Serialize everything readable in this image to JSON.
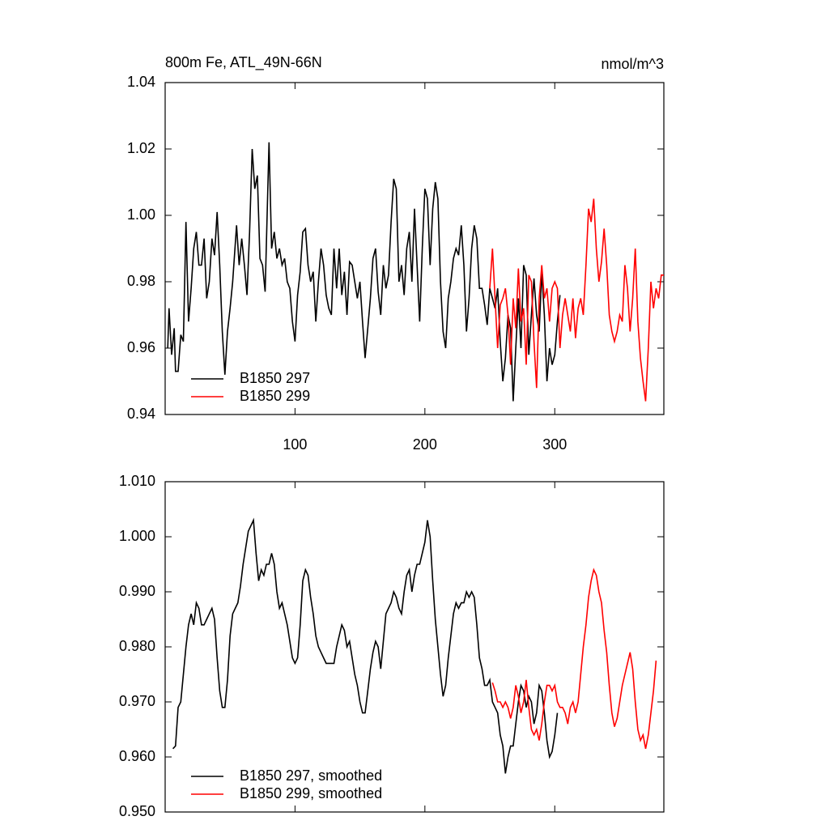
{
  "chart_data": [
    {
      "type": "line",
      "title": "800m Fe, ATL_49N-66N",
      "units": "nmol/m^3",
      "xlim": [
        0,
        384
      ],
      "xticks": [
        100,
        200,
        300
      ],
      "xtick_labels": true,
      "ylim": [
        0.94,
        1.04
      ],
      "yticks": [
        0.94,
        0.96,
        0.98,
        {
          "value": 1,
          "label": "1.00"
        },
        1.02,
        1.04
      ],
      "legend": "lower left",
      "series": [
        {
          "name": "B1850 297",
          "color": "#000000",
          "x": [
            2,
            3,
            5,
            7,
            8,
            10,
            12,
            14,
            16,
            18,
            20,
            22,
            24,
            26,
            28,
            30,
            32,
            34,
            36,
            38,
            40,
            42,
            44,
            46,
            48,
            50,
            52,
            55,
            57,
            59,
            61,
            63,
            65,
            67,
            69,
            71,
            73,
            75,
            77,
            80,
            82,
            84,
            86,
            88,
            90,
            92,
            94,
            96,
            98,
            100,
            102,
            104,
            106,
            108,
            110,
            112,
            114,
            116,
            118,
            120,
            122,
            124,
            126,
            128,
            130,
            132,
            134,
            136,
            138,
            140,
            142,
            144,
            146,
            148,
            150,
            152,
            154,
            156,
            158,
            160,
            162,
            164,
            166,
            168,
            170,
            172,
            174,
            176,
            178,
            180,
            182,
            184,
            186,
            188,
            190,
            192,
            194,
            196,
            198,
            200,
            202,
            204,
            206,
            208,
            210,
            212,
            214,
            216,
            218,
            220,
            222,
            224,
            226,
            228,
            230,
            232,
            234,
            236,
            238,
            240,
            242,
            244,
            246,
            248,
            250,
            252,
            254,
            256,
            258,
            260,
            262,
            264,
            266,
            268,
            270,
            272,
            274,
            276,
            278,
            280,
            282,
            284,
            286,
            288,
            290,
            292,
            294,
            296,
            298,
            300,
            302,
            304
          ],
          "values": [
            0.96,
            0.972,
            0.958,
            0.966,
            0.953,
            0.953,
            0.964,
            0.962,
            0.998,
            0.968,
            0.978,
            0.99,
            0.995,
            0.985,
            0.985,
            0.993,
            0.975,
            0.98,
            0.993,
            0.988,
            1.001,
            0.985,
            0.965,
            0.952,
            0.965,
            0.972,
            0.98,
            0.997,
            0.985,
            0.993,
            0.985,
            0.976,
            0.995,
            1.02,
            1.008,
            1.012,
            0.987,
            0.985,
            0.977,
            1.022,
            0.99,
            0.995,
            0.987,
            0.99,
            0.985,
            0.987,
            0.98,
            0.978,
            0.968,
            0.962,
            0.976,
            0.983,
            0.995,
            0.996,
            0.985,
            0.98,
            0.983,
            0.968,
            0.98,
            0.99,
            0.985,
            0.976,
            0.972,
            0.97,
            0.99,
            0.978,
            0.99,
            0.976,
            0.983,
            0.97,
            0.986,
            0.985,
            0.98,
            0.975,
            0.98,
            0.968,
            0.957,
            0.966,
            0.975,
            0.987,
            0.99,
            0.977,
            0.97,
            0.985,
            0.978,
            0.982,
            0.998,
            1.011,
            1.008,
            0.98,
            0.985,
            0.976,
            0.99,
            0.995,
            0.98,
            1.002,
            0.985,
            0.968,
            0.99,
            1.008,
            1.005,
            0.985,
            1.002,
            1.01,
            1.005,
            0.98,
            0.965,
            0.96,
            0.975,
            0.98,
            0.987,
            0.99,
            0.988,
            0.997,
            0.985,
            0.965,
            0.975,
            0.99,
            0.997,
            0.993,
            0.978,
            0.978,
            0.973,
            0.967,
            0.978,
            0.975,
            0.972,
            0.978,
            0.962,
            0.95,
            0.957,
            0.97,
            0.966,
            0.944,
            0.96,
            0.975,
            0.96,
            0.985,
            0.982,
            0.958,
            0.97,
            0.981,
            0.97,
            0.965,
            0.983,
            0.97,
            0.95,
            0.96,
            0.955,
            0.958,
            0.968,
            0.976
          ]
        },
        {
          "name": "B1850 299",
          "color": "#ff0000",
          "x": [
            250,
            252,
            254,
            256,
            258,
            260,
            262,
            264,
            266,
            268,
            270,
            272,
            274,
            276,
            278,
            280,
            282,
            284,
            286,
            288,
            290,
            292,
            294,
            296,
            298,
            300,
            302,
            304,
            306,
            308,
            310,
            312,
            314,
            316,
            318,
            320,
            322,
            324,
            326,
            328,
            330,
            332,
            334,
            336,
            338,
            340,
            342,
            344,
            346,
            348,
            350,
            352,
            354,
            356,
            358,
            360,
            362,
            364,
            366,
            368,
            370,
            372,
            374,
            376,
            378,
            380,
            382,
            384
          ],
          "values": [
            0.978,
            0.99,
            0.975,
            0.96,
            0.973,
            0.975,
            0.978,
            0.97,
            0.955,
            0.975,
            0.966,
            0.984,
            0.968,
            0.972,
            0.955,
            0.982,
            0.98,
            0.962,
            0.948,
            0.975,
            0.985,
            0.975,
            0.978,
            0.968,
            0.978,
            0.98,
            0.978,
            0.96,
            0.97,
            0.975,
            0.97,
            0.965,
            0.975,
            0.963,
            0.972,
            0.975,
            0.97,
            0.985,
            1.002,
            0.998,
            1.005,
            0.99,
            0.98,
            0.986,
            0.996,
            0.985,
            0.97,
            0.965,
            0.962,
            0.965,
            0.97,
            0.968,
            0.985,
            0.978,
            0.965,
            0.975,
            0.99,
            0.968,
            0.957,
            0.95,
            0.944,
            0.96,
            0.98,
            0.972,
            0.978,
            0.975,
            0.982,
            0.982
          ]
        }
      ]
    },
    {
      "type": "line",
      "xlim": [
        0,
        384
      ],
      "xticks": [
        100,
        200,
        300
      ],
      "xtick_labels": false,
      "ylim": [
        0.95,
        1.01
      ],
      "yticks": [
        {
          "value": 0.95,
          "label": "0.950"
        },
        {
          "value": 0.96,
          "label": "0.960"
        },
        {
          "value": 0.97,
          "label": "0.970"
        },
        {
          "value": 0.98,
          "label": "0.980"
        },
        {
          "value": 0.99,
          "label": "0.990"
        },
        {
          "value": 1,
          "label": "1.000"
        },
        {
          "value": 1.01,
          "label": "1.010"
        }
      ],
      "legend": "lower left",
      "series": [
        {
          "name": "B1850 297, smoothed",
          "color": "#000000",
          "x": [
            6,
            8,
            10,
            12,
            14,
            16,
            18,
            20,
            22,
            24,
            26,
            28,
            30,
            32,
            34,
            36,
            38,
            40,
            42,
            44,
            46,
            48,
            50,
            52,
            54,
            56,
            58,
            60,
            62,
            64,
            66,
            68,
            70,
            72,
            74,
            76,
            78,
            80,
            82,
            84,
            86,
            88,
            90,
            92,
            94,
            96,
            98,
            100,
            102,
            104,
            106,
            108,
            110,
            112,
            114,
            116,
            118,
            120,
            122,
            124,
            126,
            128,
            130,
            132,
            134,
            136,
            138,
            140,
            142,
            144,
            146,
            148,
            150,
            152,
            154,
            156,
            158,
            160,
            162,
            164,
            166,
            168,
            170,
            172,
            174,
            176,
            178,
            180,
            182,
            184,
            186,
            188,
            190,
            192,
            194,
            196,
            198,
            200,
            202,
            204,
            206,
            208,
            210,
            212,
            214,
            216,
            218,
            220,
            222,
            224,
            226,
            228,
            230,
            232,
            234,
            236,
            238,
            240,
            242,
            244,
            246,
            248,
            250,
            252,
            254,
            256,
            258,
            260,
            262,
            264,
            266,
            268,
            270,
            272,
            274,
            276,
            278,
            280,
            282,
            284,
            286,
            288,
            290,
            292,
            294,
            296,
            298,
            300,
            302
          ],
          "values": [
            0.9615,
            0.962,
            0.969,
            0.97,
            0.975,
            0.98,
            0.984,
            0.986,
            0.984,
            0.988,
            0.987,
            0.984,
            0.984,
            0.985,
            0.986,
            0.987,
            0.985,
            0.978,
            0.972,
            0.969,
            0.969,
            0.974,
            0.982,
            0.986,
            0.987,
            0.988,
            0.991,
            0.995,
            0.998,
            1.001,
            1.002,
            1.003,
            0.997,
            0.992,
            0.994,
            0.993,
            0.995,
            0.995,
            0.997,
            0.995,
            0.99,
            0.987,
            0.988,
            0.986,
            0.984,
            0.981,
            0.978,
            0.977,
            0.978,
            0.984,
            0.992,
            0.994,
            0.993,
            0.989,
            0.986,
            0.982,
            0.98,
            0.979,
            0.978,
            0.977,
            0.977,
            0.977,
            0.977,
            0.98,
            0.982,
            0.984,
            0.983,
            0.98,
            0.981,
            0.978,
            0.975,
            0.973,
            0.97,
            0.968,
            0.968,
            0.972,
            0.976,
            0.979,
            0.981,
            0.98,
            0.976,
            0.981,
            0.986,
            0.987,
            0.988,
            0.99,
            0.989,
            0.987,
            0.986,
            0.99,
            0.993,
            0.994,
            0.99,
            0.993,
            0.995,
            0.995,
            0.997,
            0.999,
            1.003,
            1,
            0.992,
            0.985,
            0.98,
            0.975,
            0.971,
            0.973,
            0.978,
            0.982,
            0.986,
            0.988,
            0.987,
            0.988,
            0.988,
            0.99,
            0.989,
            0.99,
            0.989,
            0.984,
            0.978,
            0.976,
            0.973,
            0.973,
            0.974,
            0.97,
            0.969,
            0.968,
            0.964,
            0.962,
            0.957,
            0.96,
            0.962,
            0.962,
            0.966,
            0.97,
            0.973,
            0.972,
            0.969,
            0.971,
            0.97,
            0.966,
            0.968,
            0.973,
            0.972,
            0.968,
            0.963,
            0.96,
            0.961,
            0.964,
            0.968
          ]
        },
        {
          "name": "B1850 299, smoothed",
          "color": "#ff0000",
          "x": [
            252,
            254,
            256,
            258,
            260,
            262,
            264,
            266,
            268,
            270,
            272,
            274,
            276,
            278,
            280,
            282,
            284,
            286,
            288,
            290,
            292,
            294,
            296,
            298,
            300,
            302,
            304,
            306,
            308,
            310,
            312,
            314,
            316,
            318,
            320,
            322,
            324,
            326,
            328,
            330,
            332,
            334,
            336,
            338,
            340,
            342,
            344,
            346,
            348,
            350,
            352,
            354,
            356,
            358,
            360,
            362,
            364,
            366,
            368,
            370,
            372,
            374,
            376,
            378
          ],
          "values": [
            0.9735,
            0.972,
            0.97,
            0.97,
            0.969,
            0.97,
            0.969,
            0.967,
            0.969,
            0.973,
            0.971,
            0.968,
            0.97,
            0.974,
            0.969,
            0.965,
            0.964,
            0.965,
            0.963,
            0.966,
            0.97,
            0.973,
            0.973,
            0.972,
            0.973,
            0.97,
            0.969,
            0.969,
            0.968,
            0.966,
            0.969,
            0.97,
            0.968,
            0.97,
            0.975,
            0.98,
            0.984,
            0.989,
            0.992,
            0.994,
            0.993,
            0.99,
            0.988,
            0.983,
            0.979,
            0.973,
            0.968,
            0.9655,
            0.967,
            0.97,
            0.973,
            0.975,
            0.977,
            0.979,
            0.976,
            0.97,
            0.965,
            0.963,
            0.964,
            0.9615,
            0.964,
            0.968,
            0.972,
            0.9775
          ]
        }
      ]
    }
  ]
}
